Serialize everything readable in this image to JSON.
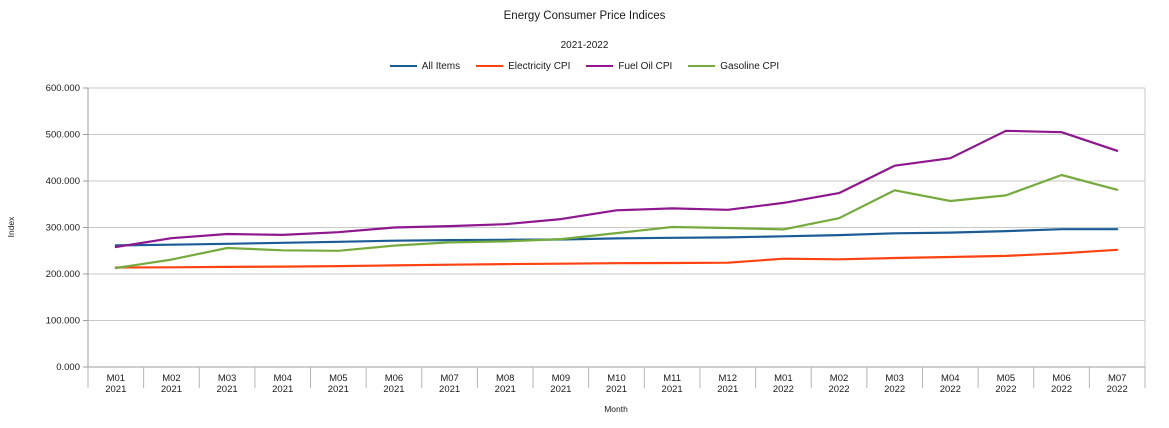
{
  "chart_data": {
    "type": "line",
    "title": "Energy Consumer Price Indices",
    "subtitle": "2021-2022",
    "xlabel": "Month",
    "ylabel": "Index",
    "ylim": [
      0,
      600
    ],
    "ytick_step": 100,
    "ytick_labels": [
      "0.000",
      "100.000",
      "200.000",
      "300.000",
      "400.000",
      "500.000",
      "600.000"
    ],
    "grid": "horizontal",
    "legend_position": "top",
    "categories": [
      "M01 2021",
      "M02 2021",
      "M03 2021",
      "M04 2021",
      "M05 2021",
      "M06 2021",
      "M07 2021",
      "M08 2021",
      "M09 2021",
      "M10 2021",
      "M11 2021",
      "M12 2021",
      "M01 2022",
      "M02 2022",
      "M03 2022",
      "M04 2022",
      "M05 2022",
      "M06 2022",
      "M07 2022"
    ],
    "series": [
      {
        "name": "All Items",
        "color": "#1b5c97",
        "values": [
          261.6,
          263.0,
          264.9,
          267.1,
          269.2,
          271.7,
          273.0,
          273.6,
          274.3,
          276.6,
          277.9,
          278.8,
          281.1,
          283.7,
          287.5,
          289.1,
          292.3,
          296.3,
          296.3
        ]
      },
      {
        "name": "Electricity CPI",
        "color": "#ff4212",
        "values": [
          214.0,
          214.5,
          215.2,
          216.0,
          217.0,
          218.5,
          220.0,
          221.2,
          222.2,
          223.2,
          223.7,
          224.2,
          232.9,
          231.6,
          234.5,
          236.6,
          239.0,
          244.5,
          252.0
        ]
      },
      {
        "name": "Fuel Oil CPI",
        "color": "#8e168e",
        "values": [
          258.0,
          277.0,
          286.0,
          284.0,
          290.0,
          300.0,
          303.0,
          307.0,
          318.0,
          337.0,
          341.0,
          338.0,
          353.0,
          374.0,
          433.0,
          449.0,
          508.0,
          505.0,
          465.0
        ]
      },
      {
        "name": "Gasoline CPI",
        "color": "#75ab3d",
        "values": [
          213.0,
          231.0,
          256.0,
          251.0,
          250.0,
          261.0,
          268.0,
          270.0,
          275.0,
          288.0,
          301.0,
          299.0,
          296.0,
          320.0,
          380.0,
          357.0,
          369.0,
          413.0,
          381.0
        ]
      }
    ],
    "style": {
      "gridline_color": "#c9c9c9",
      "axis_color": "#9e9e9e",
      "tick_color": "#b5b5b5",
      "text_color": "#1a1a1a",
      "background": "#ffffff"
    }
  }
}
